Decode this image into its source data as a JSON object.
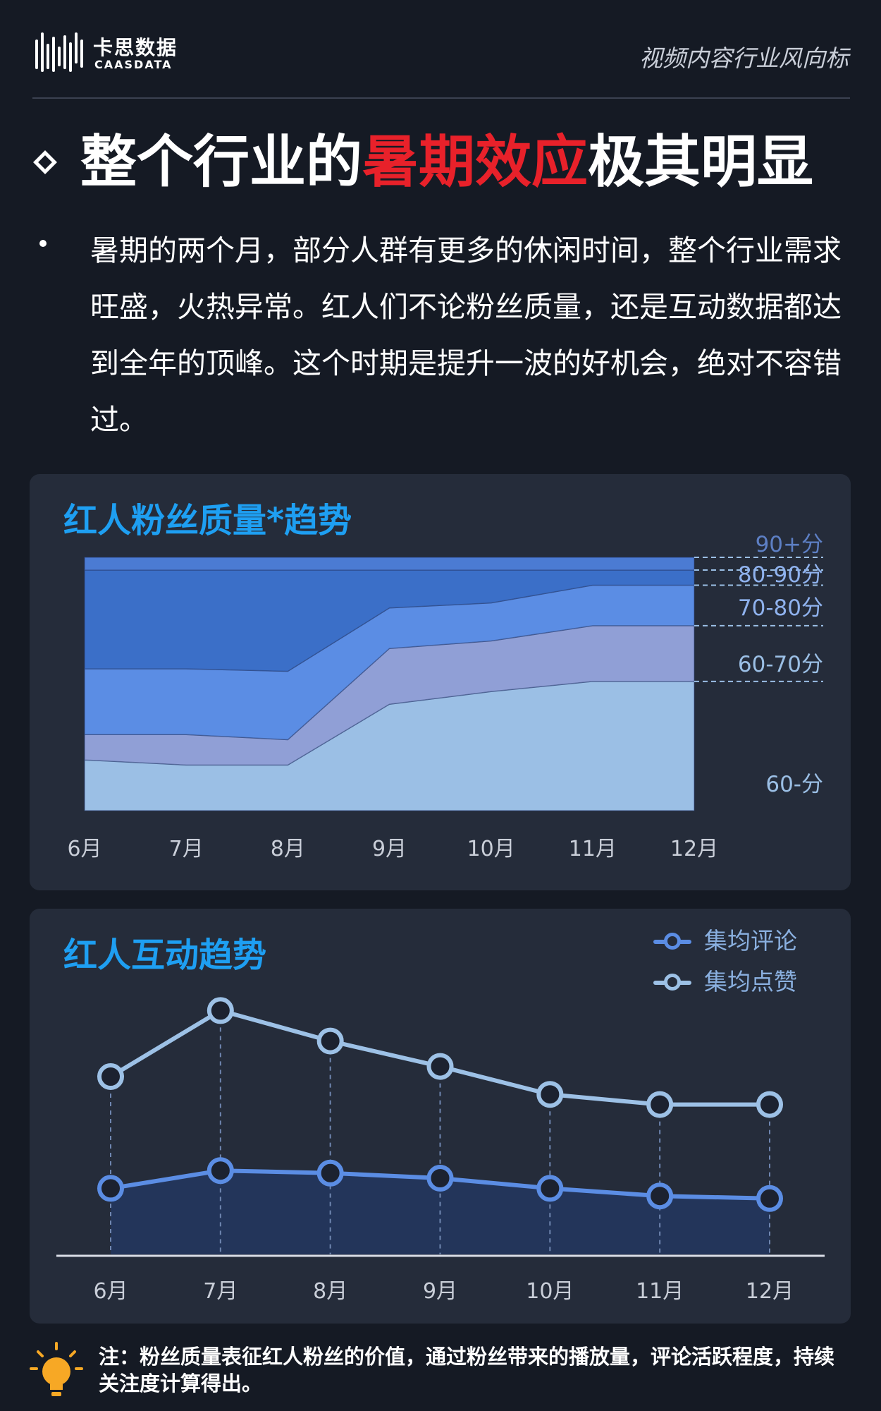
{
  "header": {
    "logo_cn": "卡思数据",
    "logo_en": "CAASDATA",
    "tagline": "视频内容行业风向标"
  },
  "title": {
    "before": "整个行业的",
    "highlight": "暑期效应",
    "after": "极其明显"
  },
  "intro": "暑期的两个月，部分人群有更多的休闲时间，整个行业需求旺盛，火热异常。红人们不论粉丝质量，还是互动数据都达到全年的顶峰。这个时期是提升一波的好机会，绝对不容错过。",
  "colors": {
    "accent_red": "#e8212a",
    "panel_title": "#1e9ff2",
    "band_60": "#9bbfe5",
    "band_60_70": "#909fd6",
    "band_70_80": "#5b8de4",
    "band_80_90": "#3b6fc8",
    "band_90": "#4b7bd3",
    "comments": "#5b8de4",
    "likes": "#9dc1e6"
  },
  "chart_data": [
    {
      "type": "area",
      "stacked": true,
      "title": "红人粉丝质量*趋势",
      "categories": [
        "6月",
        "7月",
        "8月",
        "9月",
        "10月",
        "11月",
        "12月"
      ],
      "ylim": [
        0,
        100
      ],
      "series": [
        {
          "name": "60-分",
          "color": "#9bbfe5",
          "values": [
            20,
            18,
            18,
            42,
            47,
            51,
            51
          ]
        },
        {
          "name": "60-70分",
          "color": "#909fd6",
          "values": [
            10,
            12,
            10,
            22,
            20,
            22,
            22
          ]
        },
        {
          "name": "70-80分",
          "color": "#5b8de4",
          "values": [
            26,
            26,
            27,
            16,
            15,
            16,
            16
          ]
        },
        {
          "name": "80-90分",
          "color": "#3b6fc8",
          "values": [
            39,
            39,
            40,
            15,
            13,
            6,
            6
          ]
        },
        {
          "name": "90+分",
          "color": "#4b7bd3",
          "values": [
            5,
            5,
            5,
            5,
            5,
            5,
            5
          ]
        }
      ],
      "legend_placement": "right"
    },
    {
      "type": "line",
      "title": "红人互动趋势",
      "categories": [
        "6月",
        "7月",
        "8月",
        "9月",
        "10月",
        "11月",
        "12月"
      ],
      "ylim": [
        0,
        100
      ],
      "series": [
        {
          "name": "集均评论",
          "color": "#5b8de4",
          "values": [
            26,
            33,
            32,
            30,
            26,
            23,
            22
          ]
        },
        {
          "name": "集均点赞",
          "color": "#9dc1e6",
          "values": [
            70,
            96,
            84,
            74,
            63,
            59,
            59
          ]
        }
      ],
      "legend_placement": "top-right"
    }
  ],
  "note": "注：粉丝质量表征红人粉丝的价值，通过粉丝带来的播放量，评论活跃程度，持续关注度计算得出。"
}
